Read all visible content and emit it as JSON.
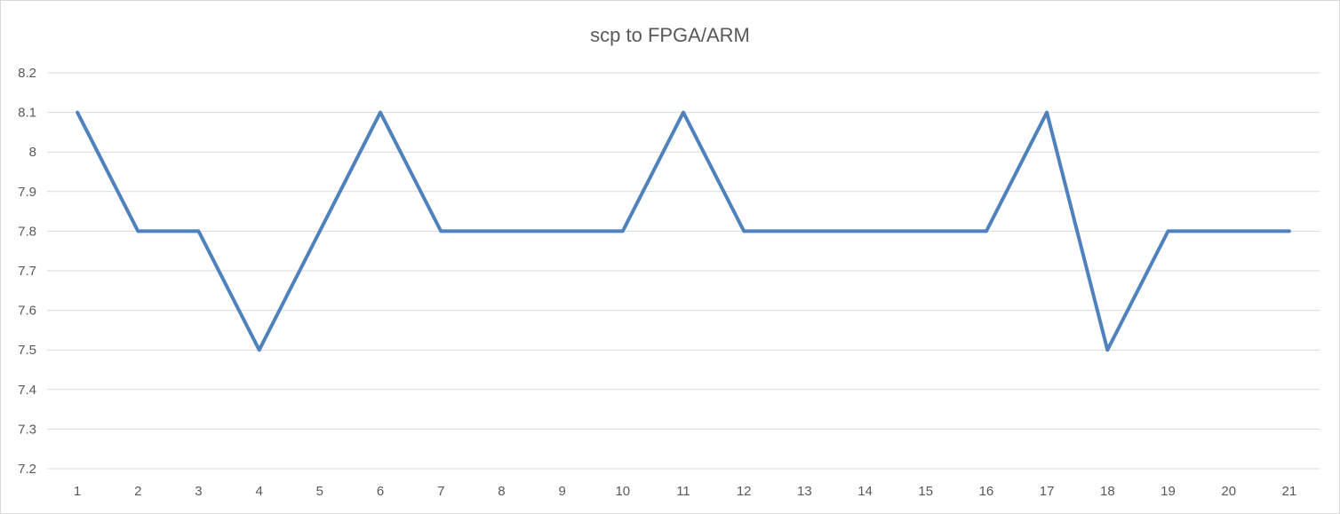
{
  "chart_data": {
    "type": "line",
    "title": "scp to FPGA/ARM",
    "xlabel": "",
    "ylabel": "",
    "x": [
      1,
      2,
      3,
      4,
      5,
      6,
      7,
      8,
      9,
      10,
      11,
      12,
      13,
      14,
      15,
      16,
      17,
      18,
      19,
      20,
      21
    ],
    "series": [
      {
        "values": [
          8.1,
          7.8,
          7.8,
          7.5,
          7.8,
          8.1,
          7.8,
          7.8,
          7.8,
          7.8,
          8.1,
          7.8,
          7.8,
          7.8,
          7.8,
          7.8,
          8.1,
          7.5,
          7.8,
          7.8,
          7.8
        ],
        "color": "#4f81bd"
      }
    ],
    "ylim": [
      7.2,
      8.2
    ],
    "yticks": [
      "7.2",
      "7.3",
      "7.4",
      "7.5",
      "7.6",
      "7.7",
      "7.8",
      "7.9",
      "8",
      "8.1",
      "8.2"
    ],
    "grid": "horizontal",
    "legend": "none"
  }
}
